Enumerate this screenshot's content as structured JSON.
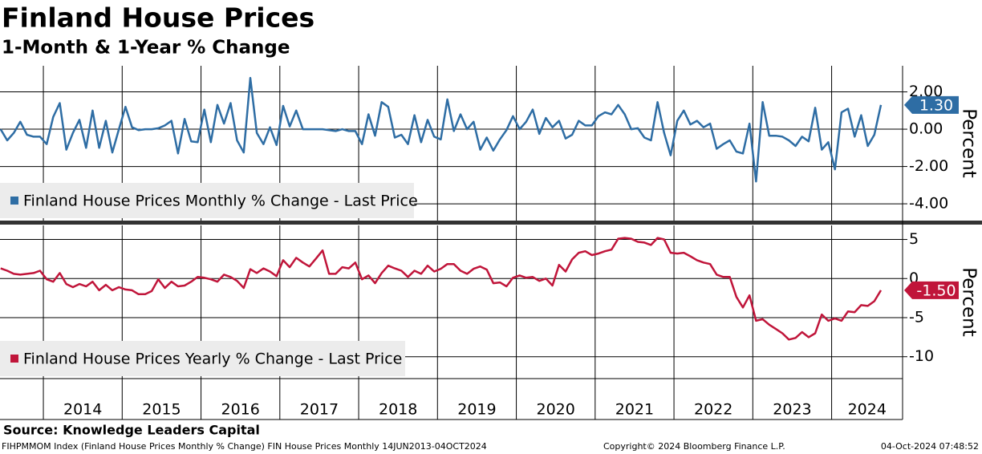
{
  "header": {
    "title": "Finland House Prices",
    "subtitle": "1-Month & 1-Year % Change"
  },
  "source": "Source: Knowledge Leaders Capital",
  "footer": {
    "left": "FIHPMMOM Index (Finland House Prices Monthly % Change) FIN House Prices  Monthly 14JUN2013-04OCT2024",
    "center": "Copyright© 2024 Bloomberg Finance L.P.",
    "right": "04-Oct-2024 07:48:52"
  },
  "chart_data": [
    {
      "type": "line",
      "y_label": "Percent",
      "grid": true,
      "xlim": [
        2013.45,
        2024.9
      ],
      "xticks": [
        2014,
        2015,
        2016,
        2017,
        2018,
        2019,
        2020,
        2021,
        2022,
        2023,
        2024
      ],
      "ylim": [
        -4.9,
        3.4
      ],
      "yticks": [
        {
          "value": -4,
          "label": "-4.00"
        },
        {
          "value": -2,
          "label": "-2.00"
        },
        {
          "value": 0,
          "label": "0.00"
        },
        {
          "value": 2,
          "label": "2.00"
        }
      ],
      "x": [
        2013.458,
        2013.542,
        2013.625,
        2013.708,
        2013.792,
        2013.875,
        2013.958,
        2014.042,
        2014.125,
        2014.208,
        2014.292,
        2014.375,
        2014.458,
        2014.542,
        2014.625,
        2014.708,
        2014.792,
        2014.875,
        2014.958,
        2015.042,
        2015.125,
        2015.208,
        2015.292,
        2015.375,
        2015.458,
        2015.542,
        2015.625,
        2015.708,
        2015.792,
        2015.875,
        2015.958,
        2016.042,
        2016.125,
        2016.208,
        2016.292,
        2016.375,
        2016.458,
        2016.542,
        2016.625,
        2016.708,
        2016.792,
        2016.875,
        2016.958,
        2017.042,
        2017.125,
        2017.208,
        2017.292,
        2017.375,
        2017.458,
        2017.542,
        2017.625,
        2017.708,
        2017.792,
        2017.875,
        2017.958,
        2018.042,
        2018.125,
        2018.208,
        2018.292,
        2018.375,
        2018.458,
        2018.542,
        2018.625,
        2018.708,
        2018.792,
        2018.875,
        2018.958,
        2019.042,
        2019.125,
        2019.208,
        2019.292,
        2019.375,
        2019.458,
        2019.542,
        2019.625,
        2019.708,
        2019.792,
        2019.875,
        2019.958,
        2020.042,
        2020.125,
        2020.208,
        2020.292,
        2020.375,
        2020.458,
        2020.542,
        2020.625,
        2020.708,
        2020.792,
        2020.875,
        2020.958,
        2021.042,
        2021.125,
        2021.208,
        2021.292,
        2021.375,
        2021.458,
        2021.542,
        2021.625,
        2021.708,
        2021.792,
        2021.875,
        2021.958,
        2022.042,
        2022.125,
        2022.208,
        2022.292,
        2022.375,
        2022.458,
        2022.542,
        2022.625,
        2022.708,
        2022.792,
        2022.875,
        2022.958,
        2023.042,
        2023.125,
        2023.208,
        2023.292,
        2023.375,
        2023.458,
        2023.542,
        2023.625,
        2023.708,
        2023.792,
        2023.875,
        2023.958,
        2024.042,
        2024.125,
        2024.208,
        2024.292,
        2024.375,
        2024.458,
        2024.542,
        2024.625
      ],
      "series": [
        {
          "name": "Finland House Prices Monthly % Change - Last Price",
          "color": "#2e6da4",
          "last_price": {
            "value": 1.3,
            "label": "1.30"
          },
          "values": [
            0.0,
            -0.6,
            -0.2,
            0.4,
            -0.3,
            -0.4,
            -0.4,
            -0.8,
            0.65,
            1.4,
            -1.1,
            -0.2,
            0.5,
            -1.0,
            1.0,
            -1.0,
            0.45,
            -1.25,
            0.0,
            1.2,
            0.1,
            -0.05,
            0.0,
            0.0,
            0.05,
            0.2,
            0.45,
            -1.3,
            0.55,
            -0.65,
            -0.7,
            1.05,
            -0.7,
            1.3,
            0.3,
            1.4,
            -0.6,
            -1.25,
            2.75,
            -0.2,
            -0.8,
            0.1,
            -0.85,
            1.25,
            0.15,
            1.0,
            0.0,
            0.0,
            0.0,
            0.0,
            -0.05,
            -0.1,
            0.0,
            -0.1,
            -0.1,
            -0.8,
            0.8,
            -0.35,
            1.45,
            1.2,
            -0.45,
            -0.3,
            -0.8,
            0.75,
            -0.7,
            0.5,
            -0.4,
            -0.55,
            1.6,
            -0.1,
            0.8,
            0.0,
            0.4,
            -1.1,
            -0.45,
            -1.15,
            -0.55,
            -0.05,
            0.7,
            0.0,
            0.4,
            1.05,
            -0.25,
            0.6,
            0.1,
            0.45,
            -0.5,
            -0.3,
            0.45,
            0.2,
            0.2,
            0.7,
            0.9,
            0.8,
            1.3,
            0.8,
            0.0,
            0.05,
            -0.45,
            -0.6,
            1.45,
            -0.2,
            -1.4,
            0.45,
            1.0,
            0.25,
            0.45,
            0.1,
            0.3,
            -1.05,
            -0.8,
            -0.6,
            -1.2,
            -1.3,
            0.3,
            -2.8,
            1.45,
            -0.35,
            -0.35,
            -0.4,
            -0.6,
            -0.9,
            -0.4,
            -0.65,
            1.15,
            -1.1,
            -0.7,
            -2.15,
            0.9,
            1.1,
            -0.4,
            0.75,
            -0.9,
            -0.3,
            1.3
          ]
        }
      ]
    },
    {
      "type": "line",
      "y_label": "Percent",
      "grid": true,
      "xlim": [
        2013.45,
        2024.9
      ],
      "xticks": [
        2014,
        2015,
        2016,
        2017,
        2018,
        2019,
        2020,
        2021,
        2022,
        2023,
        2024
      ],
      "ylim": [
        -12.8,
        6.8
      ],
      "yticks": [
        -10,
        -5,
        0,
        5
      ],
      "x": [
        2013.458,
        2013.542,
        2013.625,
        2013.708,
        2013.792,
        2013.875,
        2013.958,
        2014.042,
        2014.125,
        2014.208,
        2014.292,
        2014.375,
        2014.458,
        2014.542,
        2014.625,
        2014.708,
        2014.792,
        2014.875,
        2014.958,
        2015.042,
        2015.125,
        2015.208,
        2015.292,
        2015.375,
        2015.458,
        2015.542,
        2015.625,
        2015.708,
        2015.792,
        2015.875,
        2015.958,
        2016.042,
        2016.125,
        2016.208,
        2016.292,
        2016.375,
        2016.458,
        2016.542,
        2016.625,
        2016.708,
        2016.792,
        2016.875,
        2016.958,
        2017.042,
        2017.125,
        2017.208,
        2017.292,
        2017.375,
        2017.458,
        2017.542,
        2017.625,
        2017.708,
        2017.792,
        2017.875,
        2017.958,
        2018.042,
        2018.125,
        2018.208,
        2018.292,
        2018.375,
        2018.458,
        2018.542,
        2018.625,
        2018.708,
        2018.792,
        2018.875,
        2018.958,
        2019.042,
        2019.125,
        2019.208,
        2019.292,
        2019.375,
        2019.458,
        2019.542,
        2019.625,
        2019.708,
        2019.792,
        2019.875,
        2019.958,
        2020.042,
        2020.125,
        2020.208,
        2020.292,
        2020.375,
        2020.458,
        2020.542,
        2020.625,
        2020.708,
        2020.792,
        2020.875,
        2020.958,
        2021.042,
        2021.125,
        2021.208,
        2021.292,
        2021.375,
        2021.458,
        2021.542,
        2021.625,
        2021.708,
        2021.792,
        2021.875,
        2021.958,
        2022.042,
        2022.125,
        2022.208,
        2022.292,
        2022.375,
        2022.458,
        2022.542,
        2022.625,
        2022.708,
        2022.792,
        2022.875,
        2022.958,
        2023.042,
        2023.125,
        2023.208,
        2023.292,
        2023.375,
        2023.458,
        2023.542,
        2023.625,
        2023.708,
        2023.792,
        2023.875,
        2023.958,
        2024.042,
        2024.125,
        2024.208,
        2024.292,
        2024.375,
        2024.458,
        2024.542,
        2024.625
      ],
      "series": [
        {
          "name": "Finland House Prices Yearly % Change - Last Price",
          "color": "#c0153a",
          "last_price": {
            "value": -1.5,
            "label": "-1.50"
          },
          "values": [
            1.3,
            1.0,
            0.6,
            0.5,
            0.6,
            0.7,
            1.0,
            -0.1,
            -0.4,
            0.7,
            -0.7,
            -1.1,
            -0.7,
            -1.0,
            -0.4,
            -1.5,
            -0.8,
            -1.5,
            -1.1,
            -1.4,
            -1.5,
            -2.0,
            -2.0,
            -1.6,
            -0.1,
            -1.2,
            -0.4,
            -1.0,
            -0.9,
            -0.4,
            0.2,
            0.1,
            -0.1,
            -0.4,
            0.5,
            0.2,
            -0.3,
            -1.2,
            1.2,
            0.7,
            1.3,
            0.9,
            0.3,
            2.35,
            1.45,
            2.65,
            2.05,
            1.55,
            2.55,
            3.6,
            0.6,
            0.6,
            1.45,
            1.3,
            2.05,
            -0.1,
            0.4,
            -0.6,
            0.7,
            1.65,
            1.3,
            1.0,
            0.2,
            1.0,
            0.6,
            1.65,
            0.9,
            1.25,
            1.85,
            1.85,
            1.0,
            0.6,
            1.25,
            1.55,
            1.15,
            -0.6,
            -0.5,
            -1.0,
            0.1,
            0.4,
            0.1,
            0.2,
            -0.3,
            0.0,
            -0.9,
            1.75,
            0.9,
            2.45,
            3.3,
            3.5,
            3.0,
            3.2,
            3.5,
            3.7,
            5.1,
            5.2,
            5.1,
            4.7,
            4.6,
            4.3,
            5.2,
            5.0,
            3.3,
            3.2,
            3.3,
            2.85,
            2.35,
            2.05,
            1.85,
            0.5,
            0.2,
            0.2,
            -2.35,
            -3.7,
            -2.15,
            -5.4,
            -5.2,
            -5.9,
            -6.45,
            -7.0,
            -7.8,
            -7.6,
            -6.85,
            -7.5,
            -7.0,
            -4.6,
            -5.4,
            -5.1,
            -5.4,
            -4.2,
            -4.3,
            -3.4,
            -3.5,
            -2.9,
            -1.5
          ]
        }
      ]
    }
  ]
}
